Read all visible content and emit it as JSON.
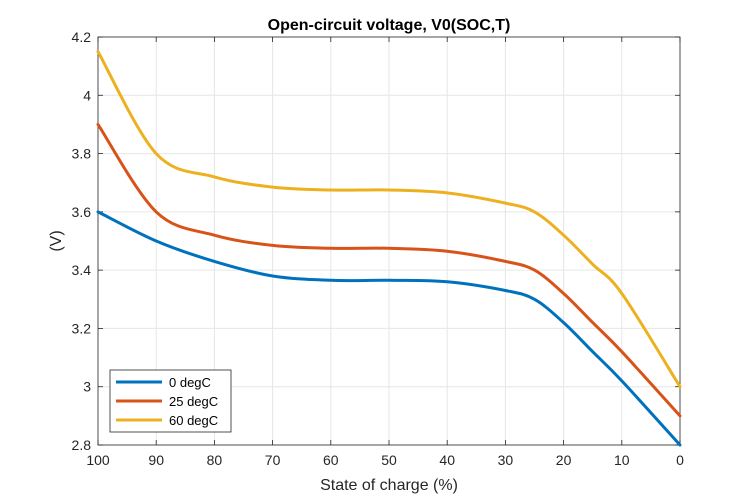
{
  "chart_data": {
    "type": "line",
    "title": "Open-circuit voltage, V0(SOC,T)",
    "xlabel": "State of charge (%)",
    "ylabel": "(V)",
    "xlim": [
      100,
      0
    ],
    "x_reversed": true,
    "ylim": [
      2.8,
      4.2
    ],
    "xticks": [
      100,
      90,
      80,
      70,
      60,
      50,
      40,
      30,
      20,
      10,
      0
    ],
    "yticks": [
      2.8,
      3,
      3.2,
      3.4,
      3.6,
      3.8,
      4,
      4.2
    ],
    "ytick_labels": [
      "2.8",
      "3",
      "3.2",
      "3.4",
      "3.6",
      "3.8",
      "4",
      "4.2"
    ],
    "grid": true,
    "legend_position": "bottom-left",
    "x": [
      100,
      90,
      80,
      70,
      60,
      50,
      40,
      30,
      25,
      20,
      15,
      10,
      0
    ],
    "series": [
      {
        "name": "0 degC",
        "color": "#0072BD",
        "values": [
          3.6,
          3.5,
          3.43,
          3.38,
          3.365,
          3.365,
          3.36,
          3.33,
          3.3,
          3.22,
          3.12,
          3.02,
          2.8
        ]
      },
      {
        "name": "25 degC",
        "color": "#D95319",
        "values": [
          3.9,
          3.6,
          3.52,
          3.485,
          3.475,
          3.475,
          3.465,
          3.43,
          3.4,
          3.32,
          3.22,
          3.12,
          2.9
        ]
      },
      {
        "name": "60 degC",
        "color": "#EDB120",
        "values": [
          4.15,
          3.8,
          3.72,
          3.685,
          3.675,
          3.675,
          3.665,
          3.63,
          3.6,
          3.52,
          3.42,
          3.32,
          3.0
        ]
      }
    ]
  }
}
